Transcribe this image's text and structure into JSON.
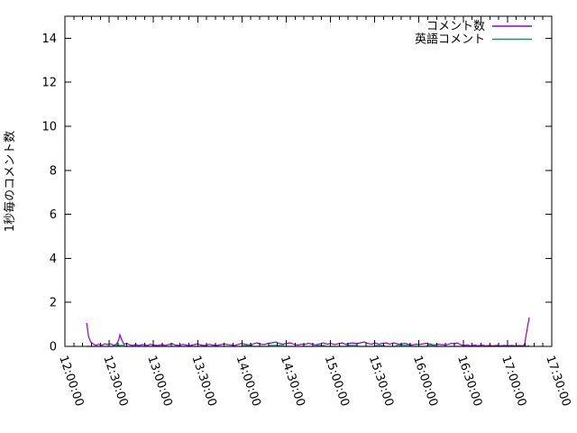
{
  "window": {
    "title": "comment rate plot"
  },
  "colors": {
    "background": "#ffffff",
    "axis": "#000000",
    "series1": "#9400d3",
    "series2": "#009e73"
  },
  "chart_data": {
    "type": "line",
    "title": "",
    "xlabel": "",
    "ylabel": "1秒毎のコメント数",
    "ylim": [
      0,
      15
    ],
    "y_ticks": [
      0,
      2,
      4,
      6,
      8,
      10,
      12,
      14
    ],
    "x_range_minutes": [
      0,
      330
    ],
    "x_major_step_minutes": 30,
    "x_minor_step_minutes": 6,
    "x_ticks": [
      "12:00:00",
      "12:30:00",
      "13:00:00",
      "13:30:00",
      "14:00:00",
      "14:30:00",
      "15:00:00",
      "15:30:00",
      "16:00:00",
      "16:30:00",
      "17:00:00",
      "17:30:00"
    ],
    "grid": false,
    "legend_position": "top-right-inside",
    "series": [
      {
        "name": "コメント数",
        "color": "#9400d3",
        "points": [
          [
            14.7,
            1.07
          ],
          [
            16,
            0.45
          ],
          [
            17.5,
            0.2
          ],
          [
            19,
            0.12
          ],
          [
            21,
            0.05
          ],
          [
            23,
            0.1
          ],
          [
            25,
            0.05
          ],
          [
            27,
            0.12
          ],
          [
            29,
            0.08
          ],
          [
            31,
            0.12
          ],
          [
            33,
            0.05
          ],
          [
            35,
            0.1
          ],
          [
            36.5,
            0.3
          ],
          [
            37.3,
            0.53
          ],
          [
            38.5,
            0.3
          ],
          [
            40,
            0.1
          ],
          [
            42,
            0.14
          ],
          [
            44,
            0.07
          ],
          [
            46,
            0.04
          ],
          [
            48,
            0.08
          ],
          [
            50,
            0.04
          ],
          [
            53,
            0.08
          ],
          [
            56,
            0.04
          ],
          [
            58,
            0.1
          ],
          [
            60,
            0.06
          ],
          [
            63,
            0.04
          ],
          [
            66,
            0.08
          ],
          [
            68,
            0.04
          ],
          [
            71,
            0.1
          ],
          [
            73,
            0.12
          ],
          [
            75,
            0.06
          ],
          [
            78,
            0.04
          ],
          [
            80,
            0.1
          ],
          [
            82,
            0.06
          ],
          [
            85,
            0.04
          ],
          [
            88,
            0.08
          ],
          [
            90,
            0.12
          ],
          [
            92,
            0.06
          ],
          [
            95,
            0.04
          ],
          [
            98,
            0.1
          ],
          [
            100,
            0.06
          ],
          [
            103,
            0.04
          ],
          [
            106,
            0.08
          ],
          [
            108,
            0.12
          ],
          [
            110,
            0.08
          ],
          [
            113,
            0.06
          ],
          [
            115,
            0.04
          ],
          [
            118,
            0.1
          ],
          [
            120,
            0.14
          ],
          [
            122,
            0.1
          ],
          [
            125,
            0.06
          ],
          [
            128,
            0.12
          ],
          [
            130,
            0.16
          ],
          [
            133,
            0.1
          ],
          [
            135,
            0.08
          ],
          [
            138,
            0.14
          ],
          [
            140,
            0.16
          ],
          [
            143,
            0.2
          ],
          [
            145,
            0.14
          ],
          [
            148,
            0.1
          ],
          [
            150,
            0.14
          ],
          [
            153,
            0.16
          ],
          [
            155,
            0.1
          ],
          [
            158,
            0.06
          ],
          [
            160,
            0.1
          ],
          [
            162,
            0.08
          ],
          [
            165,
            0.14
          ],
          [
            168,
            0.1
          ],
          [
            170,
            0.06
          ],
          [
            173,
            0.12
          ],
          [
            175,
            0.16
          ],
          [
            178,
            0.1
          ],
          [
            180,
            0.14
          ],
          [
            183,
            0.08
          ],
          [
            185,
            0.12
          ],
          [
            188,
            0.16
          ],
          [
            190,
            0.1
          ],
          [
            193,
            0.14
          ],
          [
            195,
            0.16
          ],
          [
            198,
            0.12
          ],
          [
            200,
            0.16
          ],
          [
            203,
            0.2
          ],
          [
            205,
            0.14
          ],
          [
            208,
            0.1
          ],
          [
            210,
            0.16
          ],
          [
            213,
            0.1
          ],
          [
            215,
            0.14
          ],
          [
            218,
            0.16
          ],
          [
            220,
            0.1
          ],
          [
            223,
            0.16
          ],
          [
            225,
            0.12
          ],
          [
            228,
            0.1
          ],
          [
            230,
            0.14
          ],
          [
            233,
            0.1
          ],
          [
            235,
            0.06
          ],
          [
            238,
            0.1
          ],
          [
            240,
            0.08
          ],
          [
            243,
            0.12
          ],
          [
            245,
            0.14
          ],
          [
            248,
            0.1
          ],
          [
            250,
            0.06
          ],
          [
            253,
            0.1
          ],
          [
            255,
            0.08
          ],
          [
            258,
            0.06
          ],
          [
            260,
            0.1
          ],
          [
            262,
            0.14
          ],
          [
            264,
            0.12
          ],
          [
            266,
            0.16
          ],
          [
            268,
            0.08
          ],
          [
            270,
            0.04
          ],
          [
            273,
            0.06
          ],
          [
            275,
            0.03
          ],
          [
            278,
            0.06
          ],
          [
            280,
            0.03
          ],
          [
            283,
            0.06
          ],
          [
            285,
            0.03
          ],
          [
            288,
            0.05
          ],
          [
            290,
            0.03
          ],
          [
            293,
            0.05
          ],
          [
            295,
            0.03
          ],
          [
            298,
            0.05
          ],
          [
            300,
            0.03
          ],
          [
            303,
            0.05
          ],
          [
            305,
            0.03
          ],
          [
            308,
            0.04
          ],
          [
            310,
            0.03
          ],
          [
            311.5,
            0.06
          ],
          [
            312.8,
            0.6
          ],
          [
            314.7,
            1.31
          ]
        ]
      },
      {
        "name": "英語コメント",
        "color": "#009e73",
        "points": [
          [
            14.7,
            0
          ],
          [
            33,
            0
          ],
          [
            34,
            0.05
          ],
          [
            40,
            0.05
          ],
          [
            41,
            0
          ],
          [
            120,
            0
          ],
          [
            121,
            0.04
          ],
          [
            127,
            0.04
          ],
          [
            128,
            0
          ],
          [
            138,
            0
          ],
          [
            139,
            0.05
          ],
          [
            148,
            0.05
          ],
          [
            149,
            0
          ],
          [
            170,
            0
          ],
          [
            171,
            0.04
          ],
          [
            176,
            0.04
          ],
          [
            177,
            0
          ],
          [
            190,
            0
          ],
          [
            191,
            0.05
          ],
          [
            197,
            0.05
          ],
          [
            198,
            0
          ],
          [
            210,
            0
          ],
          [
            211,
            0.04
          ],
          [
            216,
            0.04
          ],
          [
            217,
            0
          ],
          [
            224,
            0
          ],
          [
            225,
            0.05
          ],
          [
            234,
            0.05
          ],
          [
            235,
            0
          ],
          [
            245,
            0
          ],
          [
            246,
            0.05
          ],
          [
            250,
            0.05
          ],
          [
            251,
            0
          ],
          [
            313,
            0
          ],
          [
            314.7,
            0.04
          ]
        ]
      }
    ]
  }
}
